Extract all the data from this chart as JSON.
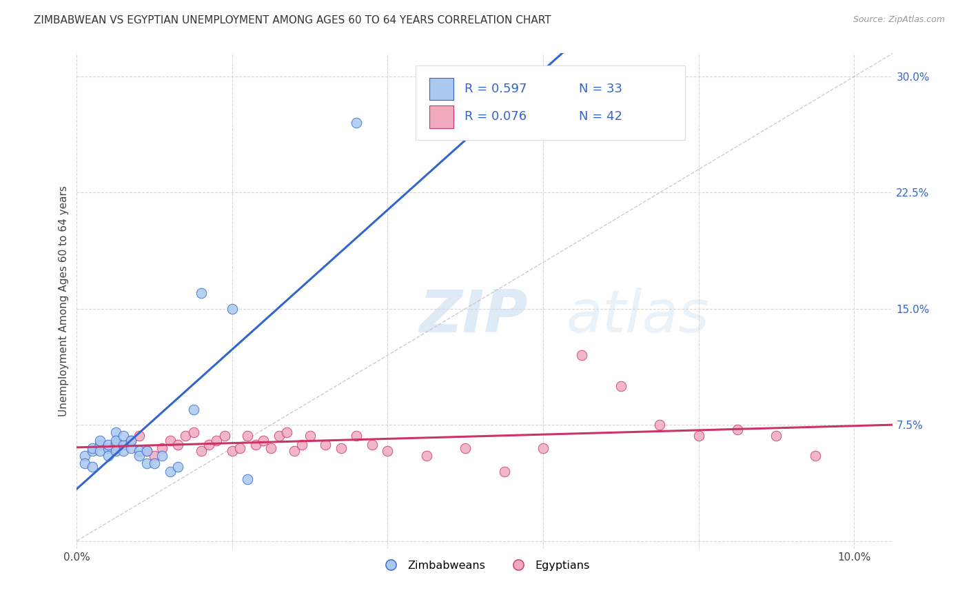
{
  "title": "ZIMBABWEAN VS EGYPTIAN UNEMPLOYMENT AMONG AGES 60 TO 64 YEARS CORRELATION CHART",
  "source": "Source: ZipAtlas.com",
  "ylabel": "Unemployment Among Ages 60 to 64 years",
  "xlim": [
    0.0,
    0.105
  ],
  "ylim": [
    -0.005,
    0.315
  ],
  "xticks": [
    0.0,
    0.02,
    0.04,
    0.06,
    0.08,
    0.1
  ],
  "yticks": [
    0.0,
    0.075,
    0.15,
    0.225,
    0.3
  ],
  "xticklabels": [
    "0.0%",
    "",
    "",
    "",
    "",
    "10.0%"
  ],
  "yticklabels": [
    "",
    "7.5%",
    "15.0%",
    "22.5%",
    "30.0%"
  ],
  "legend_label1": "Zimbabweans",
  "legend_label2": "Egyptians",
  "R1": "0.597",
  "N1": "33",
  "R2": "0.076",
  "N2": "42",
  "color_zim": "#aac8f0",
  "color_egy": "#f0aac0",
  "line_color_zim": "#3366cc",
  "line_color_egy": "#cc3366",
  "line_color_dash": "#c0c0c0",
  "watermark_zip": "ZIP",
  "watermark_atlas": "atlas",
  "zim_x": [
    0.001,
    0.001,
    0.002,
    0.002,
    0.002,
    0.003,
    0.003,
    0.003,
    0.004,
    0.004,
    0.004,
    0.005,
    0.005,
    0.005,
    0.005,
    0.006,
    0.006,
    0.006,
    0.007,
    0.007,
    0.008,
    0.008,
    0.009,
    0.009,
    0.01,
    0.011,
    0.012,
    0.013,
    0.015,
    0.016,
    0.02,
    0.022,
    0.036
  ],
  "zim_y": [
    0.055,
    0.05,
    0.058,
    0.06,
    0.048,
    0.062,
    0.058,
    0.065,
    0.06,
    0.062,
    0.055,
    0.063,
    0.058,
    0.07,
    0.065,
    0.062,
    0.068,
    0.058,
    0.06,
    0.065,
    0.058,
    0.055,
    0.05,
    0.058,
    0.05,
    0.055,
    0.045,
    0.048,
    0.085,
    0.16,
    0.15,
    0.04,
    0.27
  ],
  "egy_x": [
    0.005,
    0.006,
    0.007,
    0.008,
    0.009,
    0.01,
    0.011,
    0.012,
    0.013,
    0.014,
    0.015,
    0.016,
    0.017,
    0.018,
    0.019,
    0.02,
    0.021,
    0.022,
    0.023,
    0.024,
    0.025,
    0.026,
    0.027,
    0.028,
    0.029,
    0.03,
    0.032,
    0.034,
    0.036,
    0.038,
    0.04,
    0.045,
    0.05,
    0.055,
    0.06,
    0.065,
    0.07,
    0.075,
    0.08,
    0.085,
    0.09,
    0.095
  ],
  "egy_y": [
    0.06,
    0.062,
    0.065,
    0.068,
    0.058,
    0.055,
    0.06,
    0.065,
    0.062,
    0.068,
    0.07,
    0.058,
    0.062,
    0.065,
    0.068,
    0.058,
    0.06,
    0.068,
    0.062,
    0.065,
    0.06,
    0.068,
    0.07,
    0.058,
    0.062,
    0.068,
    0.062,
    0.06,
    0.068,
    0.062,
    0.058,
    0.055,
    0.06,
    0.045,
    0.06,
    0.12,
    0.1,
    0.075,
    0.068,
    0.072,
    0.068,
    0.055
  ],
  "title_fontsize": 11,
  "tick_fontsize": 11,
  "ylabel_fontsize": 11
}
